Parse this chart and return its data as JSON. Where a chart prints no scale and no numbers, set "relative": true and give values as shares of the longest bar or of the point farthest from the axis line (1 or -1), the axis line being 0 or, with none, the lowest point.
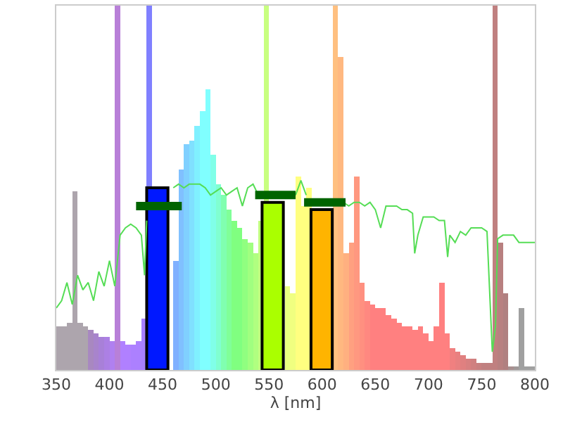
{
  "chart_data": {
    "type": "bar",
    "relative": true,
    "xlabel": "λ [nm]",
    "xlim": [
      350,
      800
    ],
    "xticks": [
      350,
      400,
      450,
      500,
      550,
      600,
      650,
      700,
      750,
      800
    ],
    "marker": "none",
    "series": [
      {
        "x": [
          350,
          355,
          360,
          365,
          370,
          375,
          380,
          385,
          390,
          395,
          400,
          405,
          410,
          415,
          420,
          425,
          430,
          435,
          440,
          445,
          450,
          455,
          460,
          465,
          470,
          475,
          480,
          485,
          490,
          495,
          500,
          505,
          510,
          515,
          520,
          525,
          530,
          535,
          540,
          545,
          550,
          555,
          560,
          565,
          570,
          575,
          580,
          585,
          590,
          595,
          600,
          605,
          610,
          615,
          620,
          625,
          630,
          635,
          640,
          645,
          650,
          655,
          660,
          665,
          670,
          675,
          680,
          685,
          690,
          695,
          700,
          705,
          710,
          715,
          720,
          725,
          730,
          735,
          740,
          745,
          750,
          755,
          760,
          765,
          770,
          775,
          780,
          785,
          790,
          795
        ],
        "values": [
          0.12,
          0.12,
          0.13,
          0.49,
          0.13,
          0.12,
          0.11,
          0.1,
          0.09,
          0.09,
          0.08,
          1,
          0.08,
          0.07,
          0.07,
          0.08,
          0.14,
          1,
          null,
          null,
          null,
          null,
          0.3,
          0.55,
          0.62,
          0.63,
          0.67,
          0.71,
          0.77,
          0.59,
          0.51,
          0.48,
          0.44,
          0.41,
          0.39,
          0.36,
          0.35,
          0.32,
          0.41,
          1,
          null,
          null,
          null,
          0.23,
          0.21,
          0.53,
          0.45,
          0.5,
          null,
          null,
          null,
          null,
          1,
          0.86,
          0.32,
          0.35,
          0.53,
          0.24,
          0.19,
          0.18,
          0.17,
          0.17,
          0.15,
          0.14,
          0.13,
          0.12,
          0.12,
          0.11,
          0.12,
          0.1,
          0.08,
          0.12,
          0.24,
          0.1,
          0.06,
          0.05,
          0.04,
          0.03,
          0.03,
          0.02,
          0.02,
          0.02,
          1,
          0.35,
          0.21,
          0.01,
          0.01,
          0.17,
          0.01,
          0.01
        ],
        "colors": [
          "#ada5ad",
          "#ada5ad",
          "#ada5ad",
          "#ada5ad",
          "#ada5ad",
          "#ada5ad",
          "#a888c0",
          "#a884cc",
          "#a880d8",
          "#ac80e4",
          "#b080f0",
          "#b880d8",
          "#b080ff",
          "#b080ff",
          "#ac80ff",
          "#ac80ff",
          "#a880ff",
          "#8080ff",
          "#8090ff",
          "#8090ff",
          "#8090ff",
          "#8090ff",
          "#80b0ff",
          "#80c0ff",
          "#80d0ff",
          "#80e0ff",
          "#80f0ff",
          "#80ffff",
          "#80ffff",
          "#80ffe8",
          "#80ffd0",
          "#80ffb0",
          "#80ff98",
          "#80ff80",
          "#80ff80",
          "#90ff80",
          "#a0ff80",
          "#b0ff80",
          "#c0ff80",
          "#c8ff80",
          "#d0ff80",
          "#d8ff80",
          "#e0ff80",
          "#e8ff80",
          "#f0ff80",
          "#ffff80",
          "#ffff80",
          "#ffff80",
          "#fff080",
          "#ffe080",
          "#ffd080",
          "#ffc880",
          "#ffc080",
          "#ffb880",
          "#ffb080",
          "#ffa080",
          "#ff9880",
          "#ff9080",
          "#ff8880",
          "#ff8080",
          "#ff8080",
          "#ff8080",
          "#ff8080",
          "#ff8080",
          "#ff8080",
          "#ff8080",
          "#ff8080",
          "#ff8080",
          "#ff8080",
          "#ff8080",
          "#ff8080",
          "#ff8080",
          "#ff8080",
          "#ff8080",
          "#f08080",
          "#e88080",
          "#e08080",
          "#d88080",
          "#d08080",
          "#c88080",
          "#c08080",
          "#c08080",
          "#c08080",
          "#b88080",
          "#b08080",
          "#a89090",
          "#a09898",
          "#a0a0a0",
          "#a0a0a0",
          "#a0a0a0"
        ]
      },
      {
        "type": "line",
        "color": "#55dd55",
        "x": [
          350,
          355,
          360,
          365,
          370,
          375,
          380,
          385,
          390,
          395,
          400,
          405,
          410,
          415,
          420,
          425,
          430,
          433,
          435,
          440,
          460,
          465,
          470,
          475,
          480,
          485,
          490,
          495,
          500,
          505,
          510,
          515,
          520,
          525,
          530,
          535,
          540,
          545,
          575,
          580,
          585,
          590,
          620,
          625,
          630,
          635,
          640,
          645,
          650,
          655,
          660,
          665,
          670,
          675,
          680,
          685,
          687,
          690,
          695,
          700,
          705,
          710,
          715,
          718,
          720,
          725,
          730,
          735,
          740,
          745,
          750,
          755,
          760,
          763,
          765,
          770,
          775,
          780,
          785,
          790,
          795,
          800
        ],
        "values": [
          0.17,
          0.19,
          0.24,
          0.18,
          0.26,
          0.22,
          0.24,
          0.19,
          0.27,
          0.23,
          0.3,
          0.23,
          0.37,
          0.39,
          0.4,
          0.39,
          0.37,
          0.26,
          0.41,
          null,
          0.5,
          0.51,
          0.5,
          0.51,
          0.51,
          0.51,
          0.5,
          0.48,
          0.49,
          0.5,
          0.48,
          0.49,
          0.5,
          0.45,
          0.5,
          0.51,
          0.48,
          null,
          0.48,
          0.52,
          0.48,
          null,
          0.46,
          0.45,
          0.46,
          0.46,
          0.45,
          0.46,
          0.44,
          0.39,
          0.45,
          0.45,
          0.45,
          0.44,
          0.44,
          0.43,
          0.32,
          0.37,
          0.42,
          0.42,
          0.42,
          0.41,
          0.41,
          0.31,
          0.37,
          0.35,
          0.38,
          0.37,
          0.39,
          0.39,
          0.39,
          0.38,
          0.05,
          0.12,
          0.36,
          0.37,
          0.37,
          0.37,
          0.35,
          0.35,
          0.35,
          0.35
        ]
      },
      {
        "type": "line",
        "color": "#006400",
        "x": [
          425,
          468,
          500,
          537,
          575,
          579,
          583,
          622
        ],
        "values": [
          0.45,
          0.45,
          null,
          0.48,
          0.48,
          null,
          0.46,
          0.46
        ]
      },
      {
        "x": [
          445,
          553.5,
          599.5
        ],
        "values": [
          0.5,
          0.46,
          0.44
        ],
        "colors": [
          "#0018ff",
          "#aaff00",
          "#ffb400"
        ]
      }
    ]
  }
}
